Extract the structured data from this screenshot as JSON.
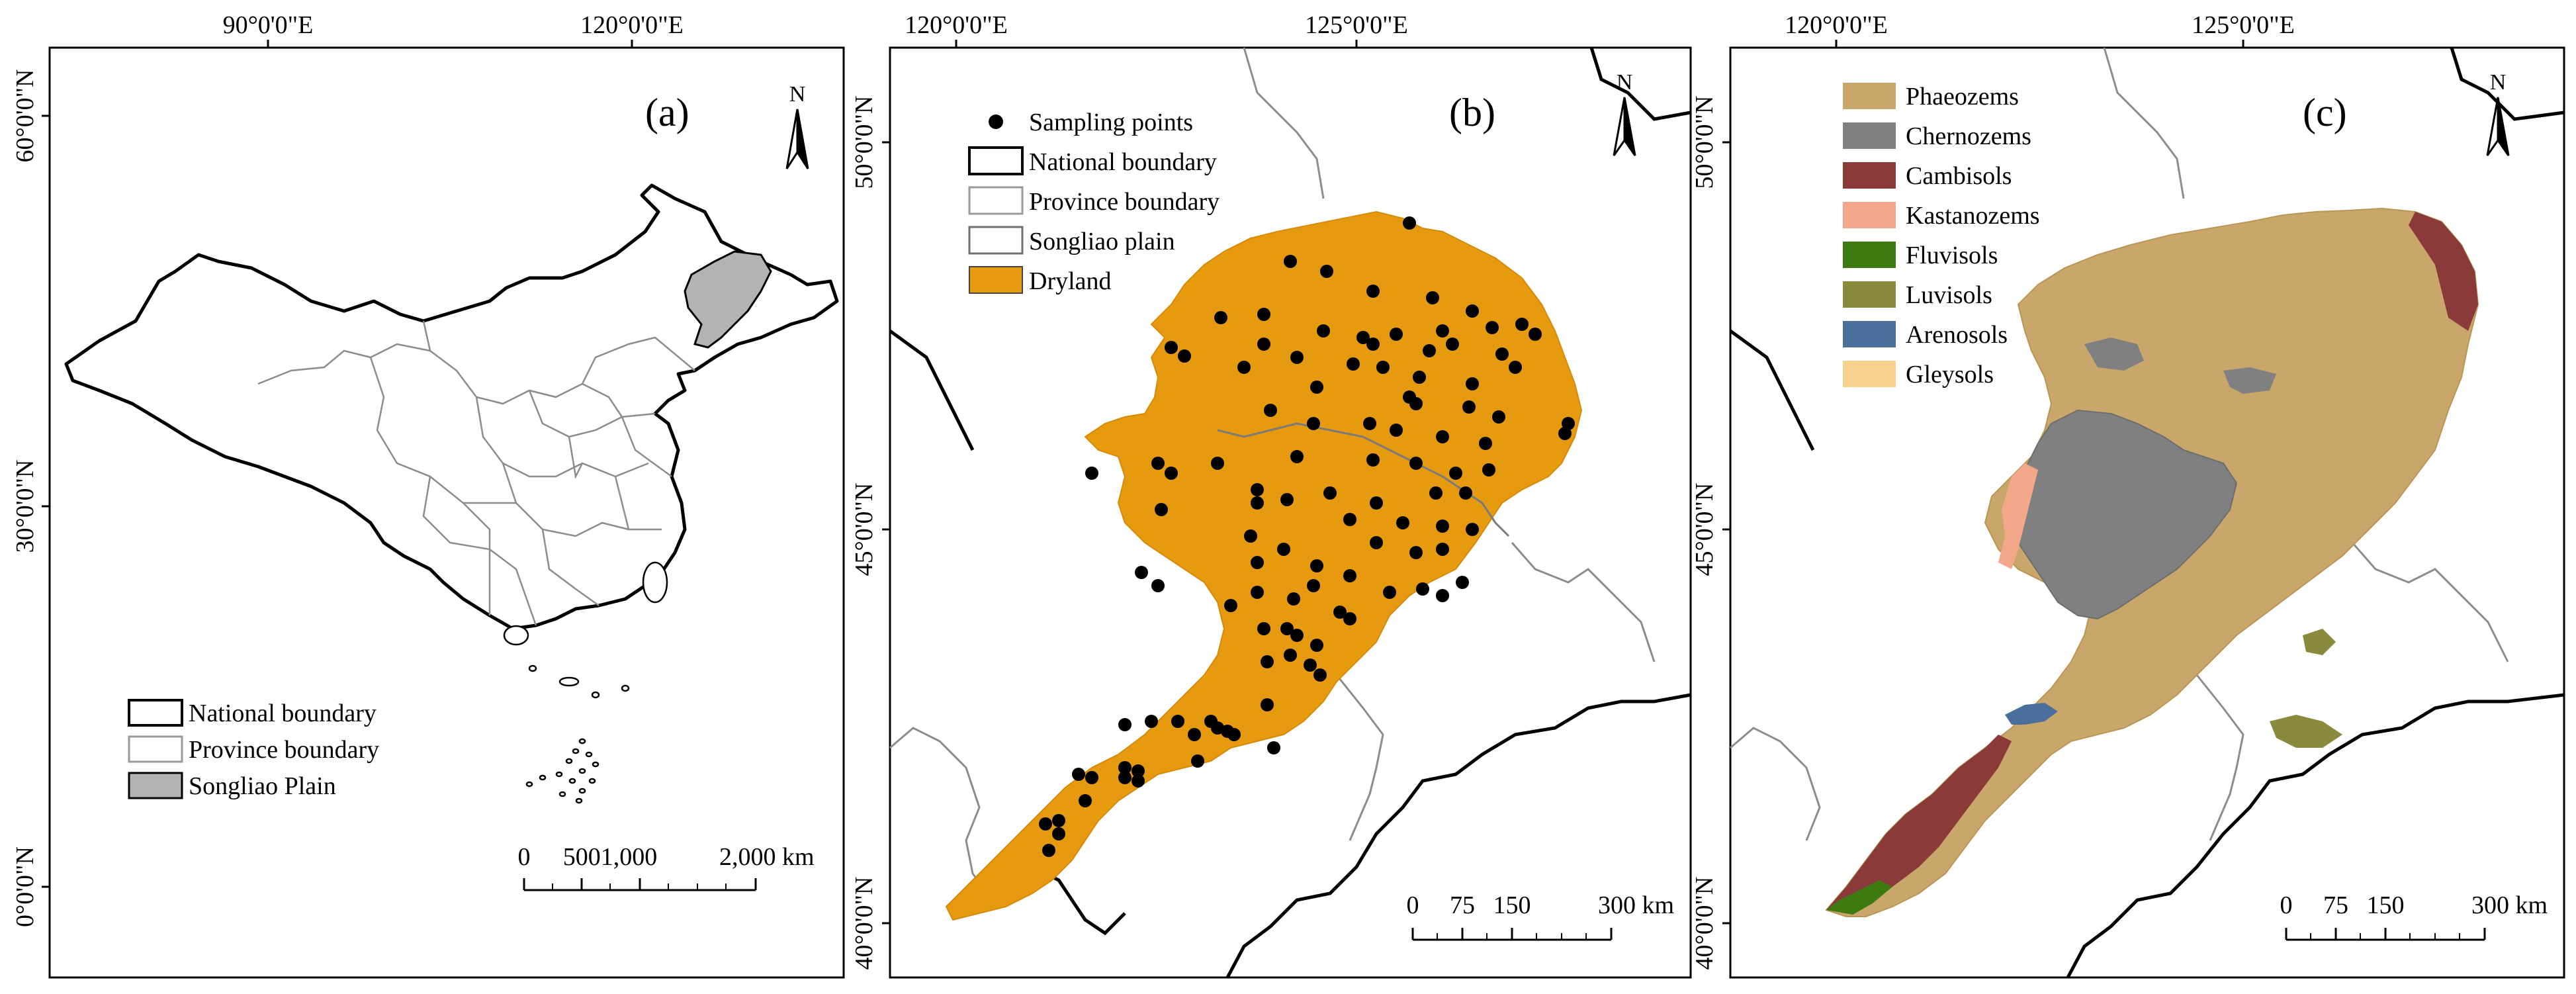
{
  "panels": [
    {
      "id": "a",
      "label": "(a)",
      "north_letter": "N",
      "top_ticks": [
        "90°0'0\"E",
        "120°0'0\"E"
      ],
      "left_ticks": [
        "60°0'0\"N",
        "30°0'0\"N",
        "0°0'0\"N"
      ],
      "legend": [
        {
          "label": "National boundary",
          "fill": "#ffffff",
          "stroke": "#000000"
        },
        {
          "label": "Province boundary",
          "fill": "#ffffff",
          "stroke": "#9a9a9a"
        },
        {
          "label": "Songliao Plain",
          "fill": "#b3b3b3",
          "stroke": "#000000"
        }
      ],
      "scale_labels": [
        "0",
        "5001,000",
        "2,000 km"
      ]
    },
    {
      "id": "b",
      "label": "(b)",
      "north_letter": "N",
      "top_ticks": [
        "120°0'0\"E",
        "125°0'0\"E"
      ],
      "left_ticks": [
        "50°0'0\"N",
        "45°0'0\"N",
        "40°0'0\"N"
      ],
      "legend": [
        {
          "label": "Sampling points",
          "type": "point",
          "fill": "#000000"
        },
        {
          "label": "National boundary",
          "fill": "#ffffff",
          "stroke": "#000000"
        },
        {
          "label": "Province boundary",
          "fill": "#ffffff",
          "stroke": "#9a9a9a"
        },
        {
          "label": "Songliao plain",
          "fill": "#ffffff",
          "stroke": "#6f6f6f"
        },
        {
          "label": "Dryland",
          "fill": "#e59a10",
          "stroke": "#444444"
        }
      ],
      "scale_labels": [
        "0",
        "75",
        "150",
        "300 km"
      ]
    },
    {
      "id": "c",
      "label": "(c)",
      "north_letter": "N",
      "top_ticks": [
        "120°0'0\"E",
        "125°0'0\"E"
      ],
      "left_ticks": [
        "50°0'0\"N",
        "45°0'0\"N",
        "40°0'0\"N"
      ],
      "legend": [
        {
          "label": "Phaeozems",
          "fill": "#c9a66b"
        },
        {
          "label": "Chernozems",
          "fill": "#808080"
        },
        {
          "label": "Cambisols",
          "fill": "#8b3a3a"
        },
        {
          "label": "Kastanozems",
          "fill": "#f2a78a"
        },
        {
          "label": "Fluvisols",
          "fill": "#3d7a12"
        },
        {
          "label": "Luvisols",
          "fill": "#8a8a3c"
        },
        {
          "label": "Arenosols",
          "fill": "#4a6f9a"
        },
        {
          "label": "Gleysols",
          "fill": "#f7d28c"
        }
      ],
      "scale_labels": [
        "0",
        "75",
        "150",
        "300 km"
      ]
    }
  ],
  "colors": {
    "frame": "#000000",
    "national_boundary": "#000000",
    "province_boundary": "#9a9a9a",
    "songliao_fill": "#b3b3b3",
    "dryland": "#e59a10",
    "sampling_point": "#000000"
  }
}
